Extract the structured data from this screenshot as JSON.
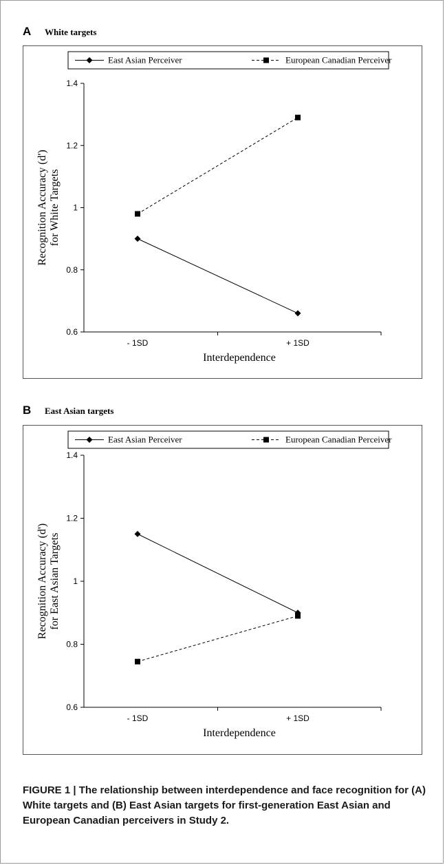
{
  "figure": {
    "caption": "FIGURE 1 | The relationship between interdependence and face recognition for (A) White targets and (B) East Asian targets for first-generation East Asian and European Canadian perceivers in Study 2."
  },
  "panels": [
    {
      "letter": "A",
      "title": "White targets"
    },
    {
      "letter": "B",
      "title": "East Asian targets"
    }
  ],
  "chart_data": [
    {
      "type": "line",
      "title": "White targets",
      "xlabel": "Interdependence",
      "ylabel": "Recognition Accuracy (d') for White Targets",
      "ylabel_lines": [
        "Recognition Accuracy (d')",
        "for White Targets"
      ],
      "categories": [
        "- 1SD",
        "+ 1SD"
      ],
      "ylim": [
        0.6,
        1.4
      ],
      "yticks": [
        "0.6",
        "0.8",
        "1",
        "1.2",
        "1.4"
      ],
      "legend_position": "top",
      "grid": false,
      "series": [
        {
          "name": "East Asian Perceiver",
          "values": [
            0.9,
            0.66
          ],
          "marker": "diamond",
          "line": "solid"
        },
        {
          "name": "European Canadian Perceiver",
          "values": [
            0.98,
            1.29
          ],
          "marker": "square",
          "line": "dashed"
        }
      ]
    },
    {
      "type": "line",
      "title": "East Asian targets",
      "xlabel": "Interdependence",
      "ylabel": "Recognition Accuracy (d') for East Asian Targets",
      "ylabel_lines": [
        "Recognition Accuracy (d')",
        "for East Asian Targets"
      ],
      "categories": [
        "- 1SD",
        "+ 1SD"
      ],
      "ylim": [
        0.6,
        1.4
      ],
      "yticks": [
        "0.6",
        "0.8",
        "1",
        "1.2",
        "1.4"
      ],
      "legend_position": "top",
      "grid": false,
      "series": [
        {
          "name": "East Asian Perceiver",
          "values": [
            1.15,
            0.9
          ],
          "marker": "diamond",
          "line": "solid"
        },
        {
          "name": "European Canadian Perceiver",
          "values": [
            0.745,
            0.89
          ],
          "marker": "square",
          "line": "dashed"
        }
      ]
    }
  ]
}
